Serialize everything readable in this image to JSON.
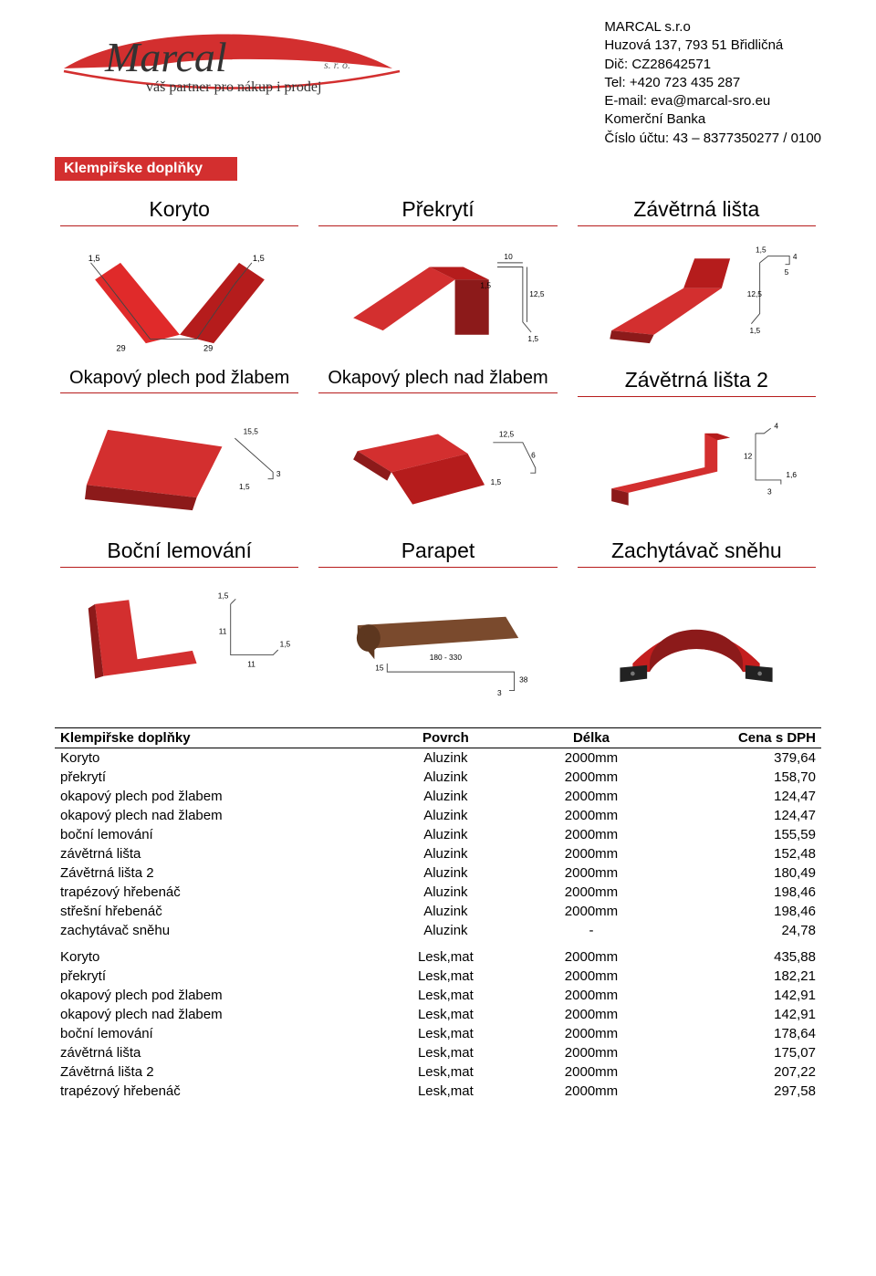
{
  "company": {
    "name": "MARCAL s.r.o",
    "address": "Huzová 137, 793 51 Břidličná",
    "dic": "Dič: CZ28642571",
    "tel": "Tel: +420 723 435 287",
    "email": "E-mail: eva@marcal-sro.eu",
    "bank": "Komerční Banka",
    "account": "Číslo účtu: 43 – 8377350277 / 0100",
    "tagline": "váš partner pro nákup i prodej",
    "logo_suffix": "s. r. o."
  },
  "section_title": "Klempiřske doplňky",
  "products": [
    {
      "label": "Koryto"
    },
    {
      "label": "Překrytí"
    },
    {
      "label": "Závětrná lišta"
    },
    {
      "label": "Okapový plech pod žlabem"
    },
    {
      "label": "Okapový plech nad žlabem"
    },
    {
      "label": "Závětrná lišta 2"
    },
    {
      "label": "Boční lemování"
    },
    {
      "label": "Parapet"
    },
    {
      "label": "Zachytávač sněhu"
    }
  ],
  "dimensions": {
    "koryto": [
      "1,5",
      "1,5",
      "29",
      "29"
    ],
    "prekryti": [
      "10",
      "12,5",
      "1,5",
      "1,5"
    ],
    "zav_lista": [
      "1,5",
      "12,5",
      "5",
      "1,5",
      "4"
    ],
    "okap_pod": [
      "15,5",
      "3",
      "1,5"
    ],
    "okap_nad": [
      "12,5",
      "6",
      "1,5"
    ],
    "zav_lista2": [
      "12",
      "1,6",
      "4",
      "3"
    ],
    "bocni": [
      "1,5",
      "11",
      "11",
      "1,5"
    ],
    "parapet": [
      "180 - 330",
      "15",
      "3",
      "38"
    ]
  },
  "table": {
    "headers": [
      "Klempiřske doplňky",
      "Povrch",
      "Délka",
      "Cena s DPH"
    ],
    "group1": [
      [
        "Koryto",
        "Aluzink",
        "2000mm",
        "379,64"
      ],
      [
        "překrytí",
        "Aluzink",
        "2000mm",
        "158,70"
      ],
      [
        "okapový plech pod žlabem",
        "Aluzink",
        "2000mm",
        "124,47"
      ],
      [
        "okapový plech nad žlabem",
        "Aluzink",
        "2000mm",
        "124,47"
      ],
      [
        "boční lemování",
        "Aluzink",
        "2000mm",
        "155,59"
      ],
      [
        "závětrná lišta",
        "Aluzink",
        "2000mm",
        "152,48"
      ],
      [
        "Závětrná lišta 2",
        "Aluzink",
        "2000mm",
        "180,49"
      ],
      [
        "trapézový hřebenáč",
        "Aluzink",
        "2000mm",
        "198,46"
      ],
      [
        "střešní hřebenáč",
        "Aluzink",
        "2000mm",
        "198,46"
      ],
      [
        "zachytávač sněhu",
        "Aluzink",
        "-",
        "24,78"
      ]
    ],
    "group2": [
      [
        "Koryto",
        "Lesk,mat",
        "2000mm",
        "435,88"
      ],
      [
        "překrytí",
        "Lesk,mat",
        "2000mm",
        "182,21"
      ],
      [
        "okapový plech pod žlabem",
        "Lesk,mat",
        "2000mm",
        "142,91"
      ],
      [
        "okapový plech nad žlabem",
        "Lesk,mat",
        "2000mm",
        "142,91"
      ],
      [
        "boční lemování",
        "Lesk,mat",
        "2000mm",
        "178,64"
      ],
      [
        "závětrná lišta",
        "Lesk,mat",
        "2000mm",
        "175,07"
      ],
      [
        "Závětrná lišta 2",
        "Lesk,mat",
        "2000mm",
        "207,22"
      ],
      [
        "trapézový hřebenáč",
        "Lesk,mat",
        "2000mm",
        "297,58"
      ]
    ]
  },
  "colors": {
    "red": "#d32f2f",
    "dark_red": "#8c1a1a",
    "red_line": "#b71c1c",
    "brown": "#6b3f26",
    "black": "#000000"
  }
}
